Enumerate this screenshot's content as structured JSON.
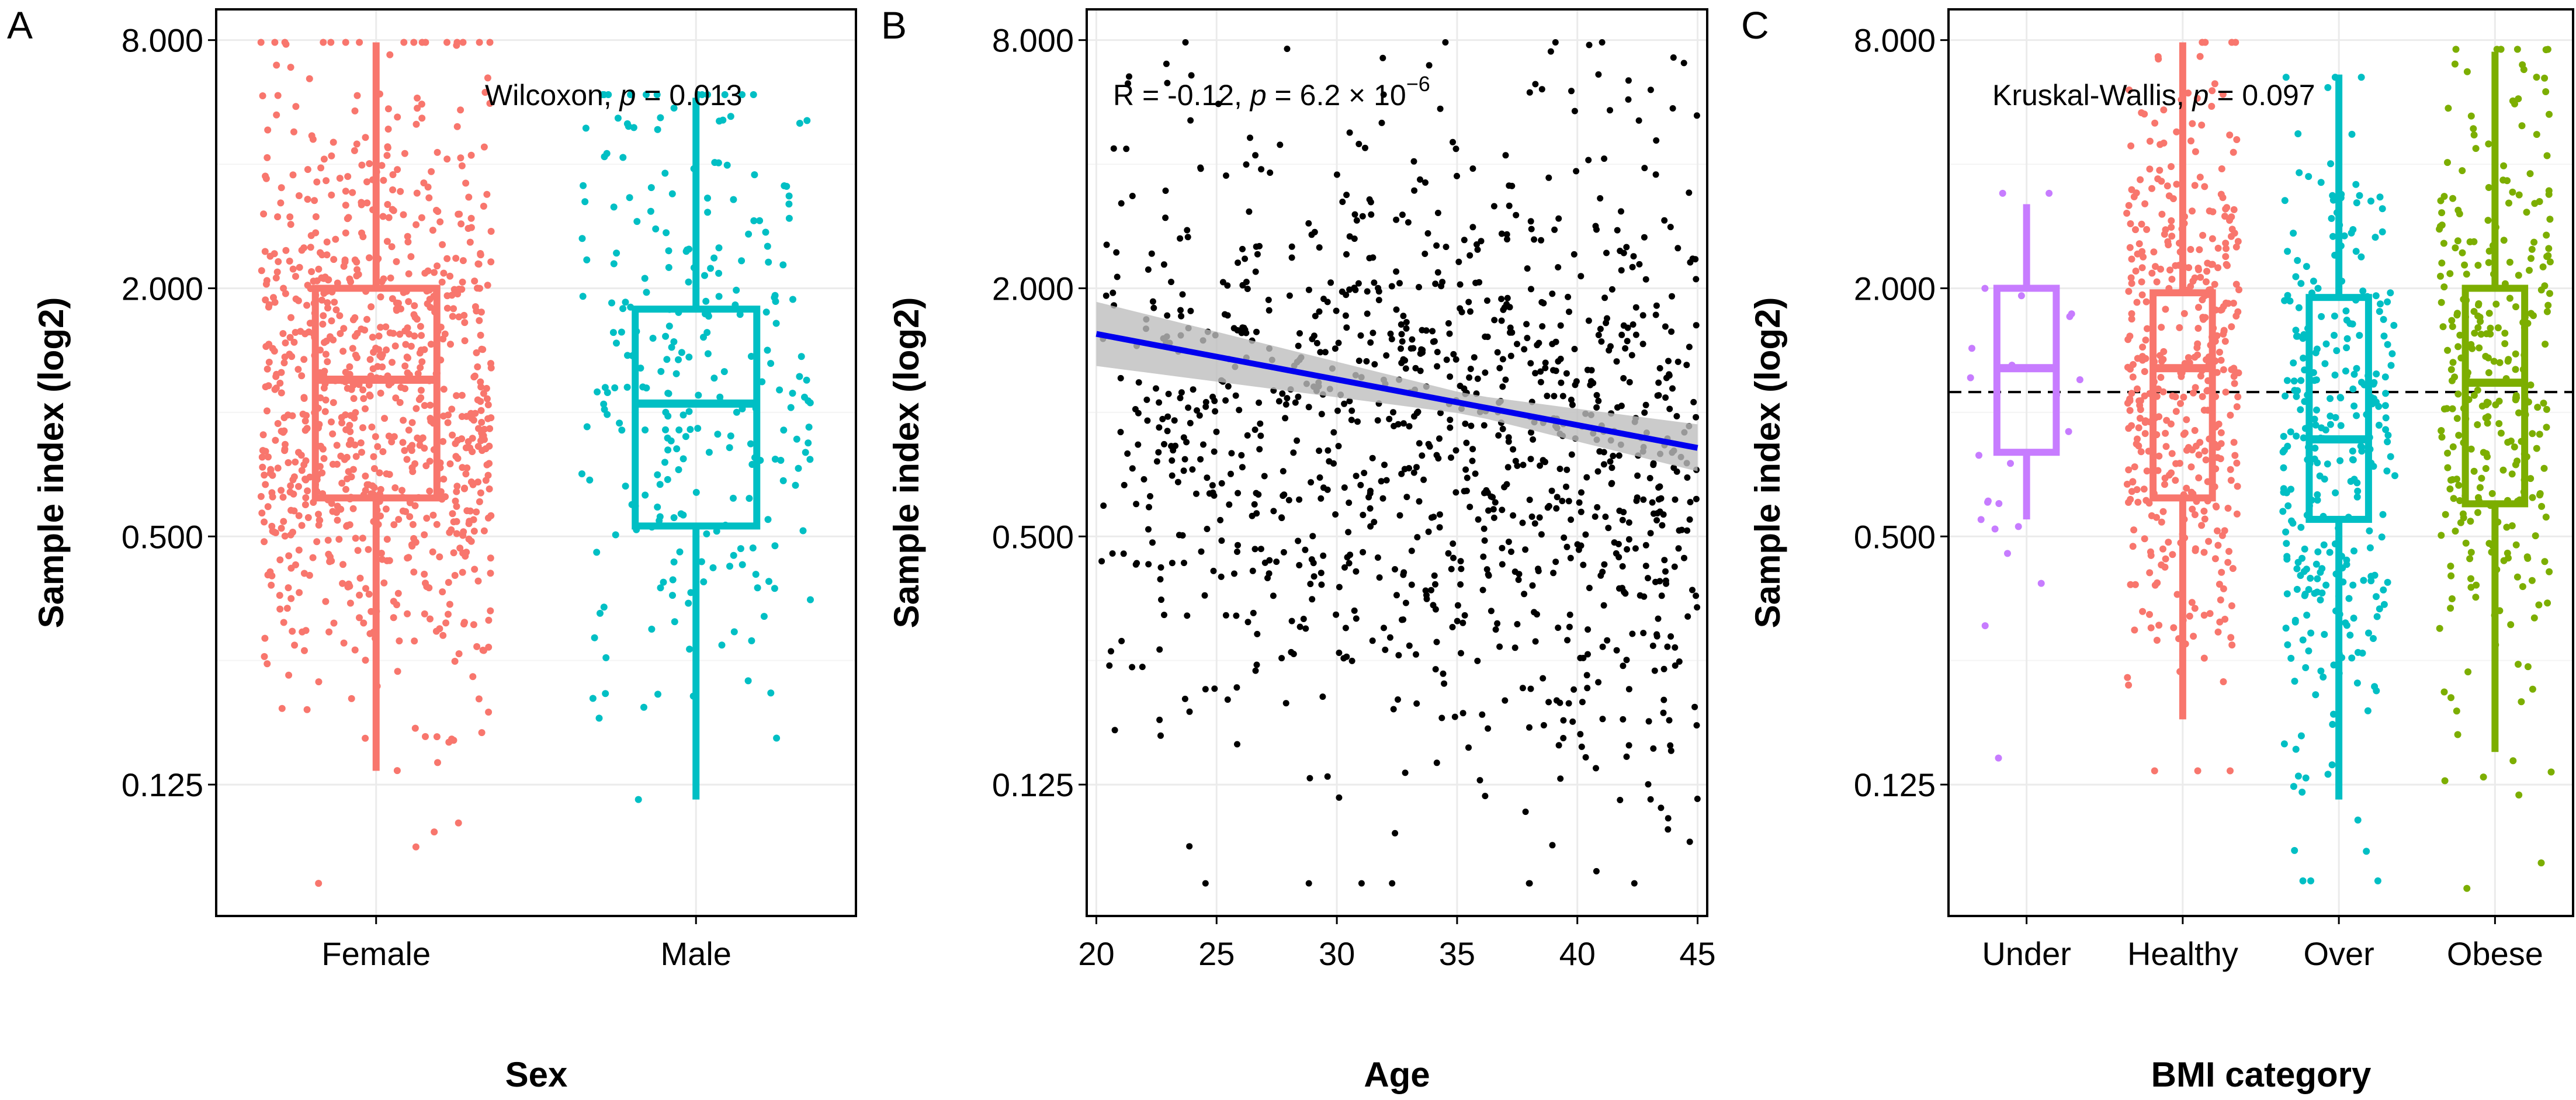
{
  "figure": {
    "panels": [
      {
        "letter": "A"
      },
      {
        "letter": "B"
      },
      {
        "letter": "C"
      }
    ]
  },
  "chart_data": [
    {
      "panel": "A",
      "type": "box",
      "xlabel": "Sex",
      "ylabel": "Sample index (log2)",
      "y_scale": "log2",
      "ylim": [
        0.06,
        9.5
      ],
      "yticks": [
        0.125,
        0.5,
        2,
        8
      ],
      "ytick_labels": [
        "0.125",
        "0.500",
        "2.000",
        "8.000"
      ],
      "annotation": {
        "test": "Wilcoxon,",
        "p_label": "p",
        "p_value": "= 0.013"
      },
      "groups": [
        {
          "label": "Female",
          "color": "#F8766D",
          "n_points": 900,
          "min": 0.135,
          "q1": 0.62,
          "median": 1.2,
          "q3": 2.0,
          "max": 7.9,
          "point_min": 0.072,
          "point_max": 7.9
        },
        {
          "label": "Male",
          "color": "#00BFC4",
          "n_points": 260,
          "min": 0.115,
          "q1": 0.53,
          "median": 1.05,
          "q3": 1.78,
          "max": 5.8,
          "point_min": 0.115,
          "point_max": 5.9
        }
      ]
    },
    {
      "panel": "B",
      "type": "scatter",
      "xlabel": "Age",
      "ylabel": "Sample index (log2)",
      "y_scale": "log2",
      "xlim": [
        19.6,
        45.4
      ],
      "ylim": [
        0.06,
        9.5
      ],
      "xticks": [
        20,
        25,
        30,
        35,
        40,
        45
      ],
      "yticks": [
        0.125,
        0.5,
        2,
        8
      ],
      "ytick_labels": [
        "0.125",
        "0.500",
        "2.000",
        "8.000"
      ],
      "annotation": {
        "r_text": "R = -0.12,",
        "p_label": "p",
        "p_value": "= 6.2 × 10",
        "p_exponent": "−6"
      },
      "point_color": "#000000",
      "n_points": 1100,
      "regression": {
        "x": [
          20,
          45
        ],
        "y": [
          1.55,
          0.82
        ],
        "color": "#0000EE",
        "ci_color": "#BEBEBE"
      }
    },
    {
      "panel": "C",
      "type": "box",
      "xlabel": "BMI category",
      "ylabel": "Sample index (log2)",
      "y_scale": "log2",
      "ylim": [
        0.06,
        9.5
      ],
      "yticks": [
        0.125,
        0.5,
        2,
        8
      ],
      "ytick_labels": [
        "0.125",
        "0.500",
        "2.000",
        "8.000"
      ],
      "reference_line": 1.12,
      "annotation": {
        "test": "Kruskal-Wallis,",
        "p_label": "p",
        "p_value": "= 0.097"
      },
      "groups": [
        {
          "label": "Under",
          "color": "#C77CFF",
          "n_points": 22,
          "min": 0.55,
          "q1": 0.8,
          "median": 1.28,
          "q3": 2.0,
          "max": 3.2,
          "point_min": 0.145,
          "point_max": 3.4
        },
        {
          "label": "Healthy",
          "color": "#F8766D",
          "n_points": 420,
          "min": 0.18,
          "q1": 0.62,
          "median": 1.28,
          "q3": 1.95,
          "max": 7.9,
          "point_min": 0.135,
          "point_max": 7.9
        },
        {
          "label": "Over",
          "color": "#00BFC4",
          "n_points": 300,
          "min": 0.115,
          "q1": 0.55,
          "median": 0.86,
          "q3": 1.9,
          "max": 6.6,
          "point_min": 0.073,
          "point_max": 6.5
        },
        {
          "label": "Obese",
          "color": "#7CAE00",
          "n_points": 300,
          "min": 0.15,
          "q1": 0.6,
          "median": 1.18,
          "q3": 2.0,
          "max": 7.5,
          "point_min": 0.07,
          "point_max": 7.6
        }
      ]
    }
  ]
}
